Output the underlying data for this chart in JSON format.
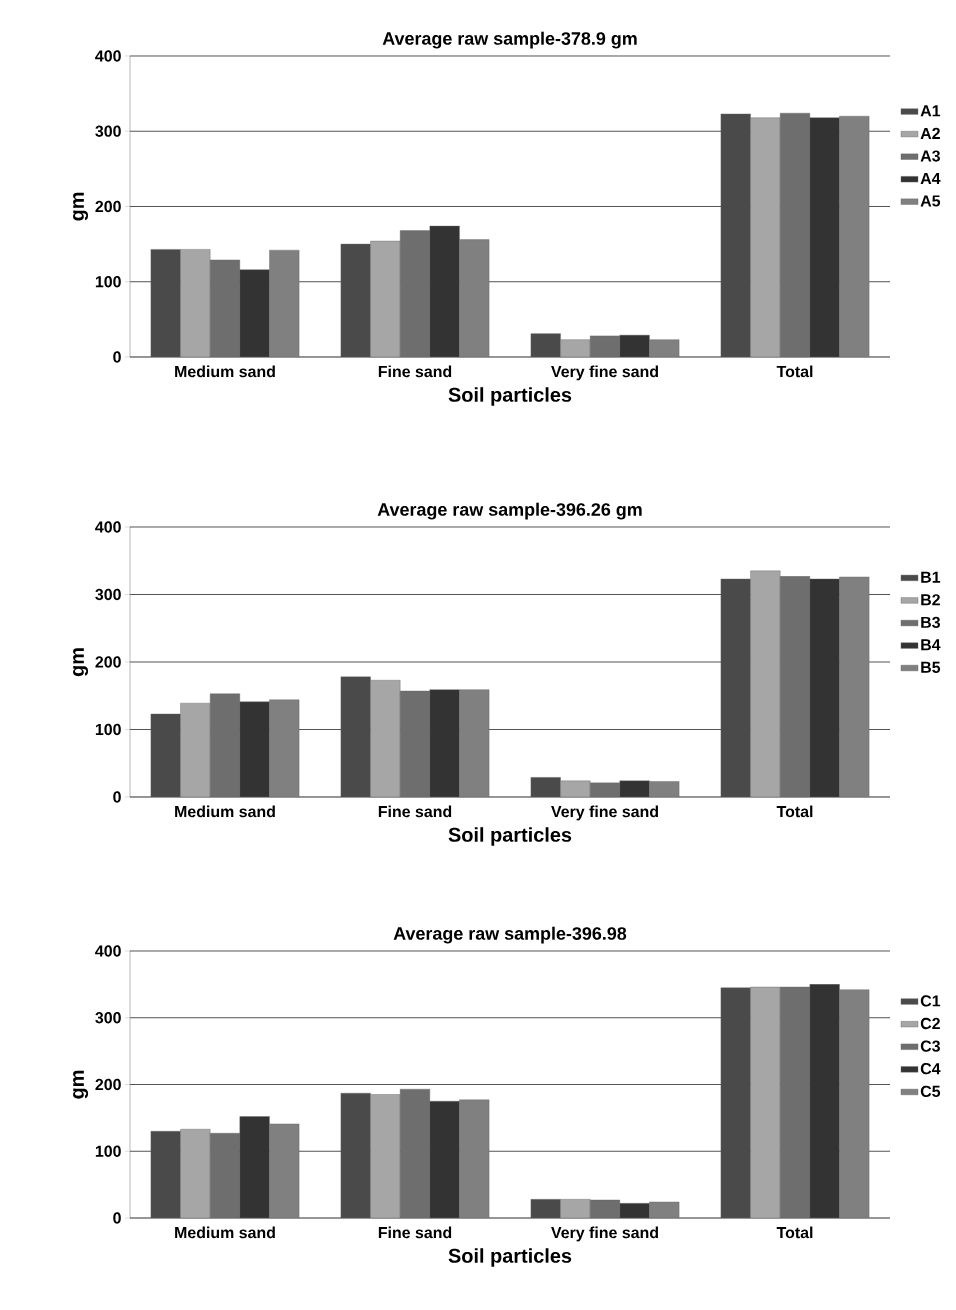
{
  "chart_data": [
    {
      "type": "bar",
      "title": "Average raw sample-378.9 gm",
      "xlabel": "Soil particles",
      "ylabel": "gm",
      "categories": [
        "Medium sand",
        "Fine sand",
        "Very fine sand",
        "Total"
      ],
      "ylim": [
        0,
        400
      ],
      "yticks": [
        0,
        100,
        200,
        300,
        400
      ],
      "grid": "y",
      "legend": "right",
      "series": [
        {
          "name": "A1",
          "color": "#4a4a4a",
          "values": [
            143,
            150,
            31,
            323
          ]
        },
        {
          "name": "A2",
          "color": "#a6a6a6",
          "values": [
            143,
            154,
            23,
            318
          ]
        },
        {
          "name": "A3",
          "color": "#6e6e6e",
          "values": [
            129,
            168,
            28,
            324
          ]
        },
        {
          "name": "A4",
          "color": "#333333",
          "values": [
            116,
            174,
            29,
            318
          ]
        },
        {
          "name": "A5",
          "color": "#808080",
          "values": [
            142,
            156,
            23,
            320
          ]
        }
      ]
    },
    {
      "type": "bar",
      "title": "Average raw sample-396.26 gm",
      "xlabel": "Soil particles",
      "ylabel": "gm",
      "categories": [
        "Medium sand",
        "Fine sand",
        "Very fine sand",
        "Total"
      ],
      "ylim": [
        0,
        400
      ],
      "yticks": [
        0,
        100,
        200,
        300,
        400
      ],
      "grid": "y",
      "legend": "right",
      "series": [
        {
          "name": "B1",
          "color": "#4a4a4a",
          "values": [
            123,
            178,
            29,
            323
          ]
        },
        {
          "name": "B2",
          "color": "#a6a6a6",
          "values": [
            139,
            173,
            24,
            335
          ]
        },
        {
          "name": "B3",
          "color": "#6e6e6e",
          "values": [
            153,
            157,
            21,
            327
          ]
        },
        {
          "name": "B4",
          "color": "#333333",
          "values": [
            141,
            159,
            24,
            323
          ]
        },
        {
          "name": "B5",
          "color": "#808080",
          "values": [
            144,
            159,
            23,
            326
          ]
        }
      ]
    },
    {
      "type": "bar",
      "title": "Average raw sample-396.98",
      "xlabel": "Soil particles",
      "ylabel": "gm",
      "categories": [
        "Medium sand",
        "Fine sand",
        "Very fine sand",
        "Total"
      ],
      "ylim": [
        0,
        400
      ],
      "yticks": [
        0,
        100,
        200,
        300,
        400
      ],
      "grid": "y",
      "legend": "right",
      "series": [
        {
          "name": "C1",
          "color": "#4a4a4a",
          "values": [
            130,
            187,
            28,
            345
          ]
        },
        {
          "name": "C2",
          "color": "#a6a6a6",
          "values": [
            133,
            185,
            28,
            346
          ]
        },
        {
          "name": "C3",
          "color": "#6e6e6e",
          "values": [
            127,
            193,
            27,
            346
          ]
        },
        {
          "name": "C4",
          "color": "#333333",
          "values": [
            152,
            175,
            22,
            350
          ]
        },
        {
          "name": "C5",
          "color": "#808080",
          "values": [
            141,
            177,
            24,
            342
          ]
        }
      ]
    }
  ]
}
